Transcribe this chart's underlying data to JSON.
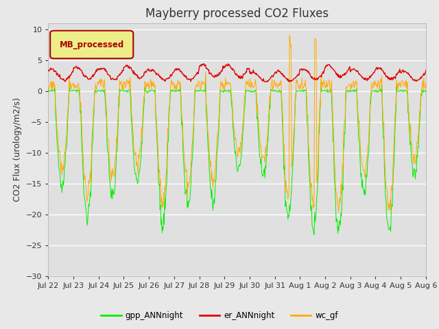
{
  "title": "Mayberry processed CO2 Fluxes",
  "ylabel": "CO2 Flux (urology/m2/s)",
  "legend_label": "MB_processed",
  "legend_label_color": "#aa0000",
  "legend_box_color": "#eeee88",
  "series": [
    "gpp_ANNnight",
    "er_ANNnight",
    "wc_gf"
  ],
  "series_colors": [
    "#00ee00",
    "#dd0000",
    "#ffaa00"
  ],
  "ylim": [
    -30,
    11
  ],
  "yticks": [
    10,
    5,
    0,
    -5,
    -10,
    -15,
    -20,
    -25,
    -30
  ],
  "bg_color": "#e8e8e8",
  "plot_bg_color": "#e0e0e0",
  "title_fontsize": 12,
  "axis_fontsize": 9,
  "tick_fontsize": 8
}
